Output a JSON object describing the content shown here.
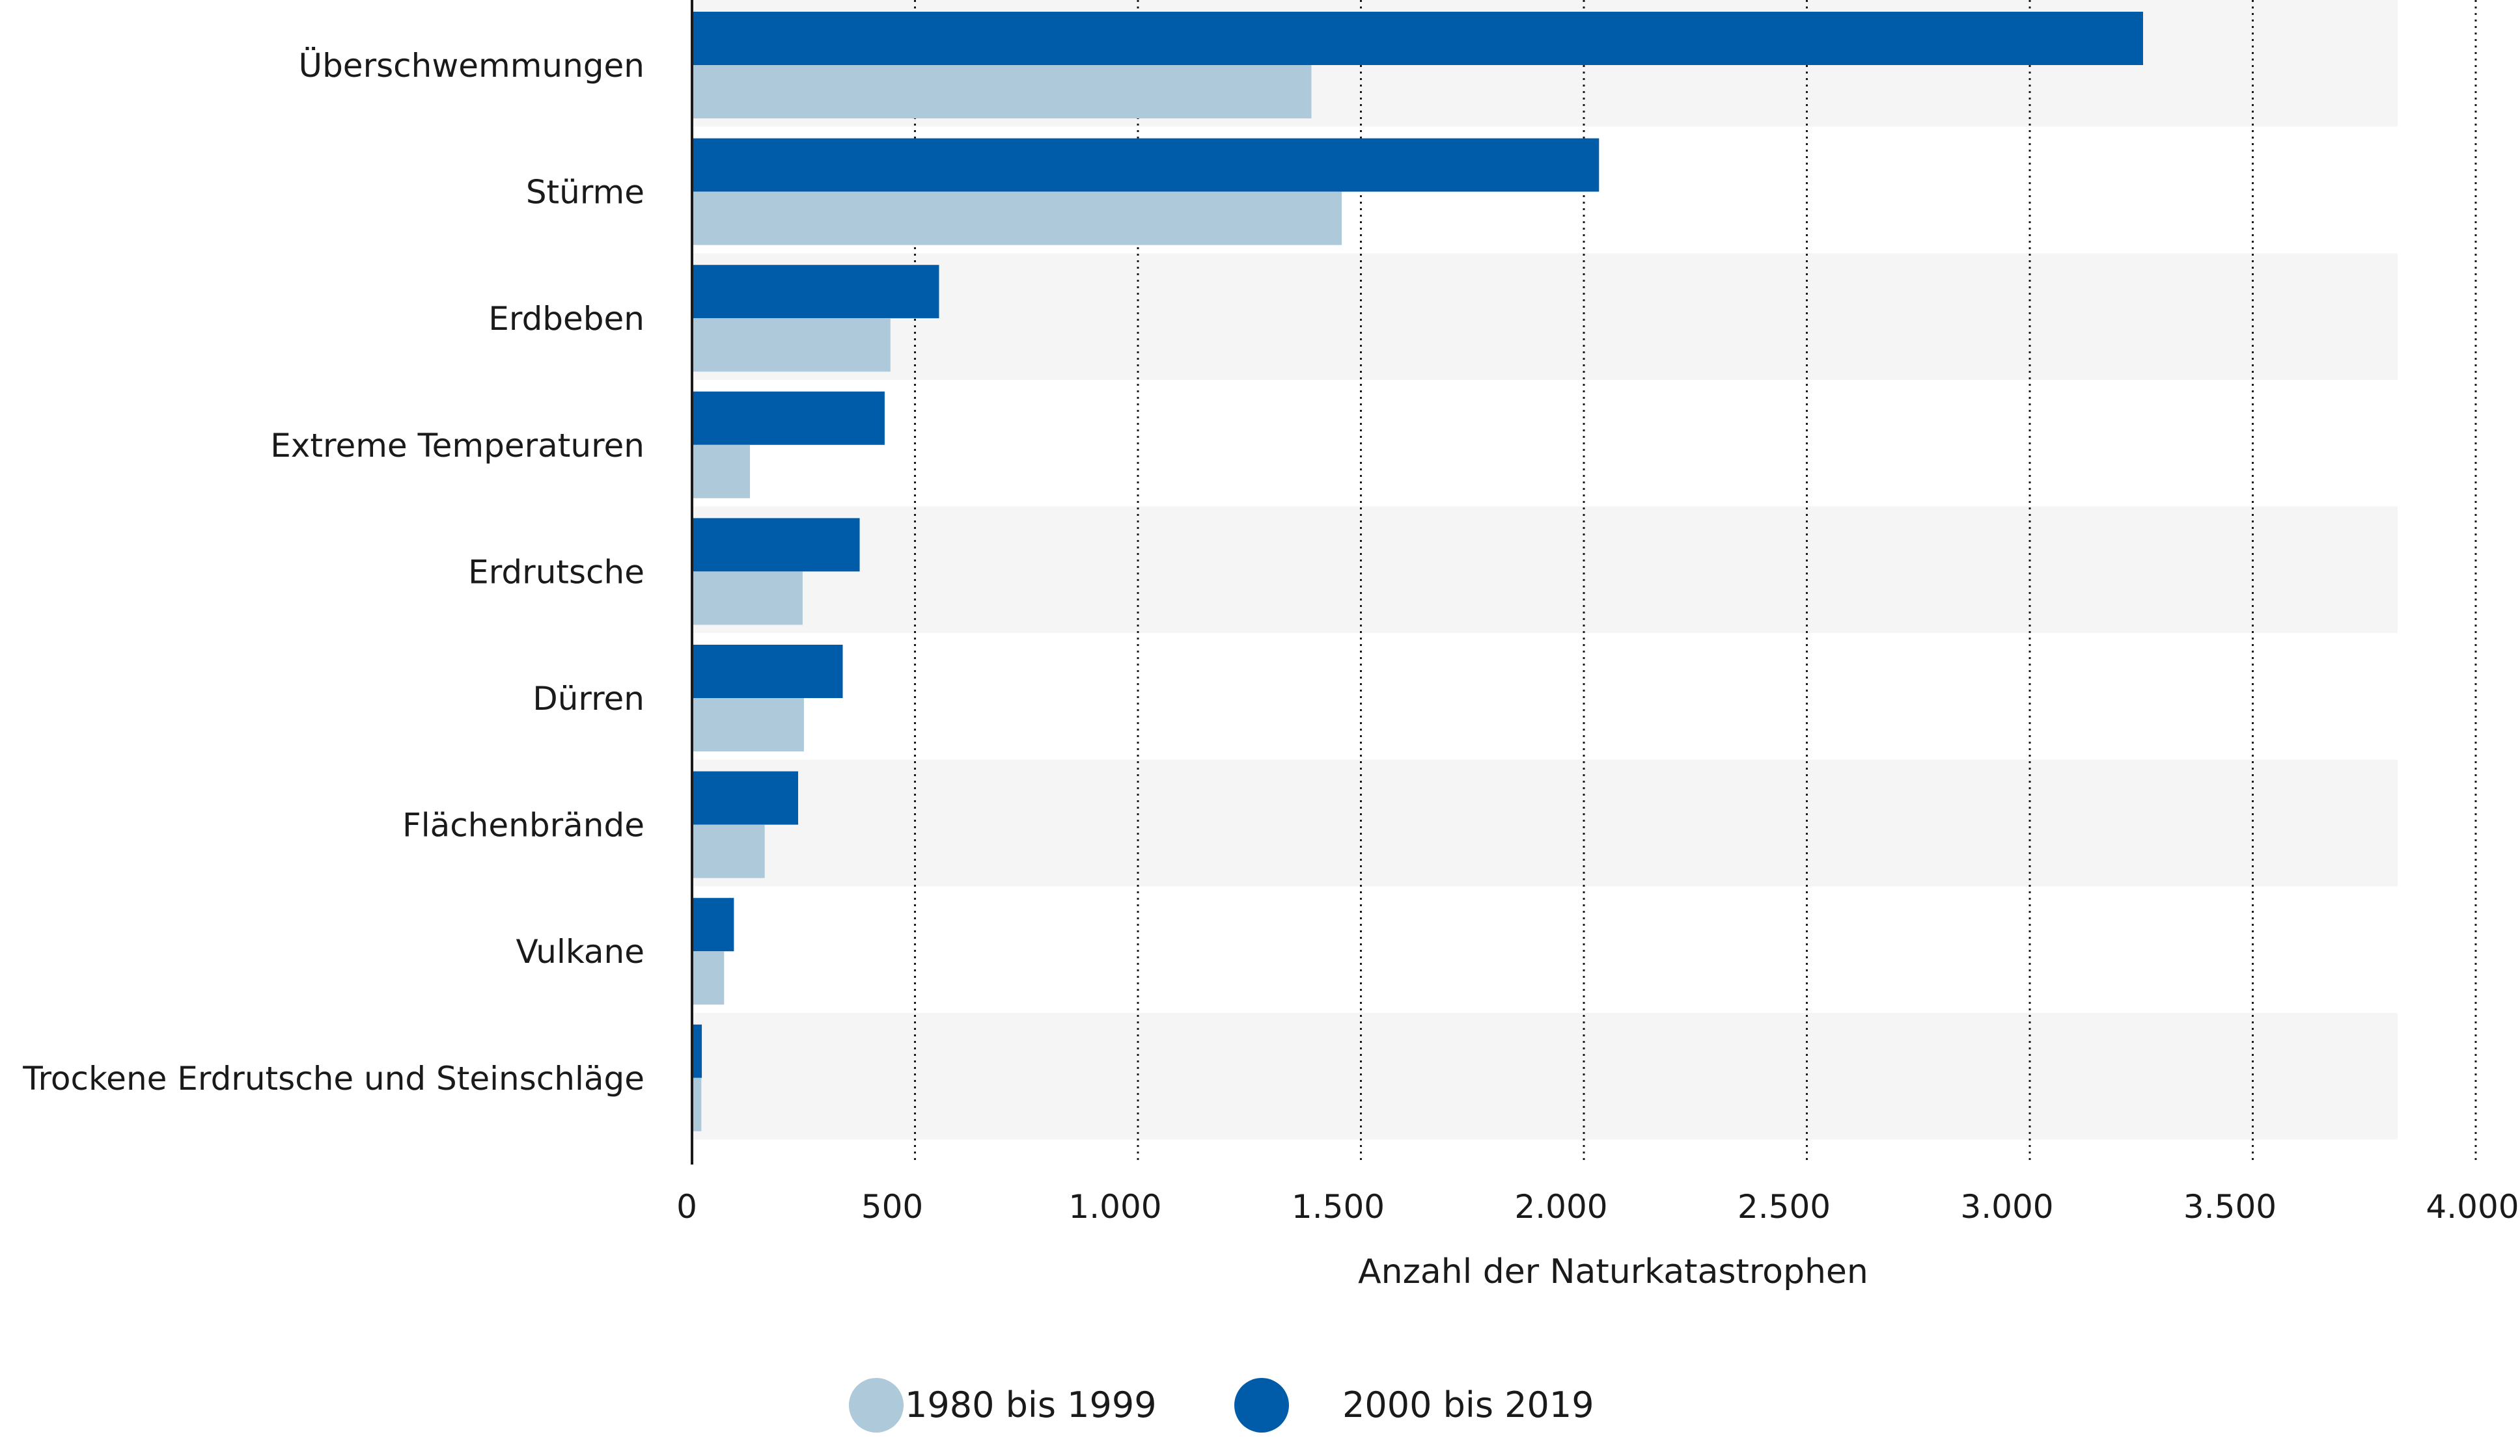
{
  "chart_data": {
    "type": "bar",
    "orientation": "horizontal",
    "categories": [
      "Überschwemmungen",
      "Stürme",
      "Erdbeben",
      "Extreme Temperaturen",
      "Erdrutsche",
      "Dürren",
      "Flächenbrände",
      "Vulkane",
      "Trockene Erdrutsche und Steinschläge"
    ],
    "series": [
      {
        "name": "2000 bis 2019",
        "color": "#005ca9",
        "values": [
          3254,
          2034,
          554,
          432,
          376,
          338,
          238,
          94,
          22
        ]
      },
      {
        "name": "1980 bis 1999",
        "color": "#aec9d9",
        "values": [
          1389,
          1457,
          445,
          130,
          248,
          251,
          163,
          72,
          21
        ]
      }
    ],
    "xlabel": "Anzahl der Naturkatastrophen",
    "xlim": [
      0,
      4000
    ],
    "xticks": [
      0,
      500,
      1000,
      1500,
      2000,
      2500,
      3000,
      3500,
      4000
    ],
    "xtick_labels": [
      "0",
      "500",
      "1.000",
      "1.500",
      "2.000",
      "2.500",
      "3.000",
      "3.500",
      "4.000"
    ],
    "grid": "vertical dotted",
    "legend": {
      "position": "bottom-center",
      "items": [
        {
          "label": "1980 bis 1999",
          "color": "#aec9d9"
        },
        {
          "label": "2000 bis 2019",
          "color": "#005ca9"
        }
      ]
    },
    "row_band_color": "#f5f5f5"
  }
}
